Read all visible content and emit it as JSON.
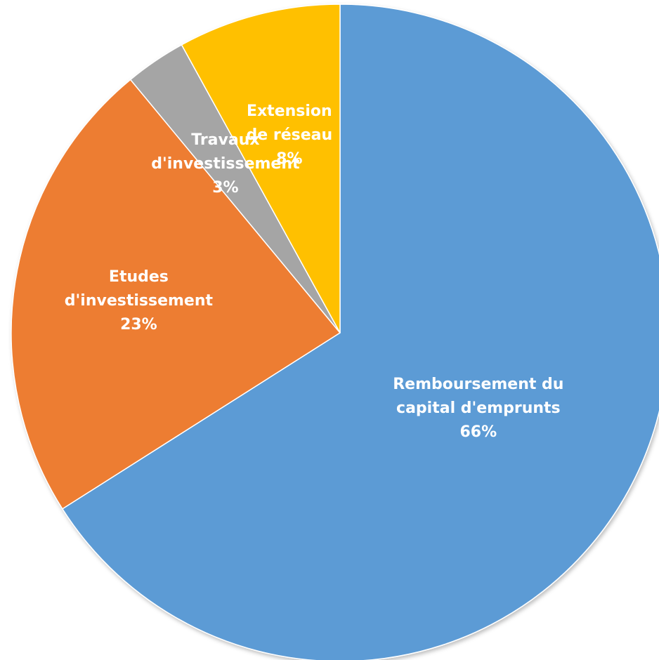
{
  "chart_data": {
    "type": "pie",
    "categories": [
      "Remboursement du\ncapital d'emprunts",
      "Etudes\nd'investissement",
      "Travaux\nd'investissement",
      "Extension\nde réseau"
    ],
    "values": [
      66,
      23,
      3,
      8
    ],
    "value_labels": [
      "66%",
      "23%",
      "3%",
      "8%"
    ],
    "colors": [
      "#5b9bd5",
      "#ed7d31",
      "#a5a5a5",
      "#ffc000"
    ]
  }
}
